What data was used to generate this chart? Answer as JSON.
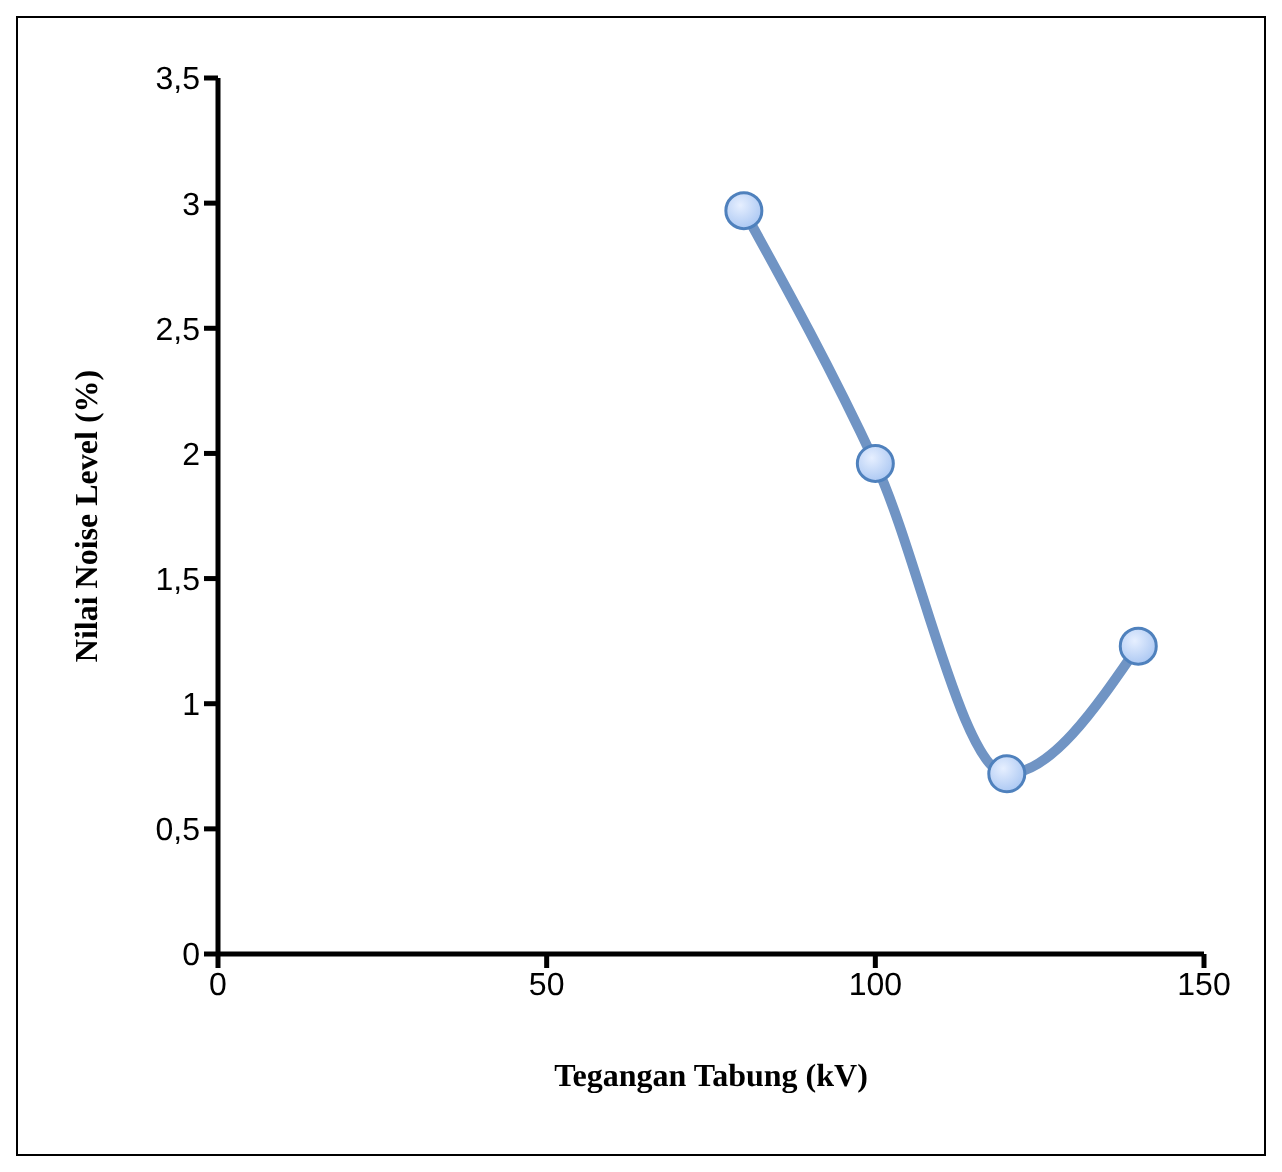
{
  "chart_data": {
    "type": "line",
    "xlabel": "Tegangan Tabung (kV)",
    "ylabel": "Nilai  Noise Level (%)",
    "x": [
      80,
      100,
      120,
      140
    ],
    "series": [
      {
        "color": "#7094c4",
        "values": [
          2.97,
          1.96,
          0.72,
          1.23
        ]
      }
    ],
    "xlim": [
      0,
      150
    ],
    "xticks": [
      0,
      50,
      100,
      150
    ],
    "ylim": [
      0,
      3.5
    ],
    "yticks": [
      0,
      {
        "value": 0.5,
        "label": "0,5"
      },
      1,
      {
        "value": 1.5,
        "label": "1,5"
      },
      2,
      {
        "value": 2.5,
        "label": "2,5"
      },
      3,
      {
        "value": 3.5,
        "label": "3,5"
      }
    ],
    "grid": false,
    "legend": false,
    "marker": "circle",
    "line_style": "solid"
  }
}
